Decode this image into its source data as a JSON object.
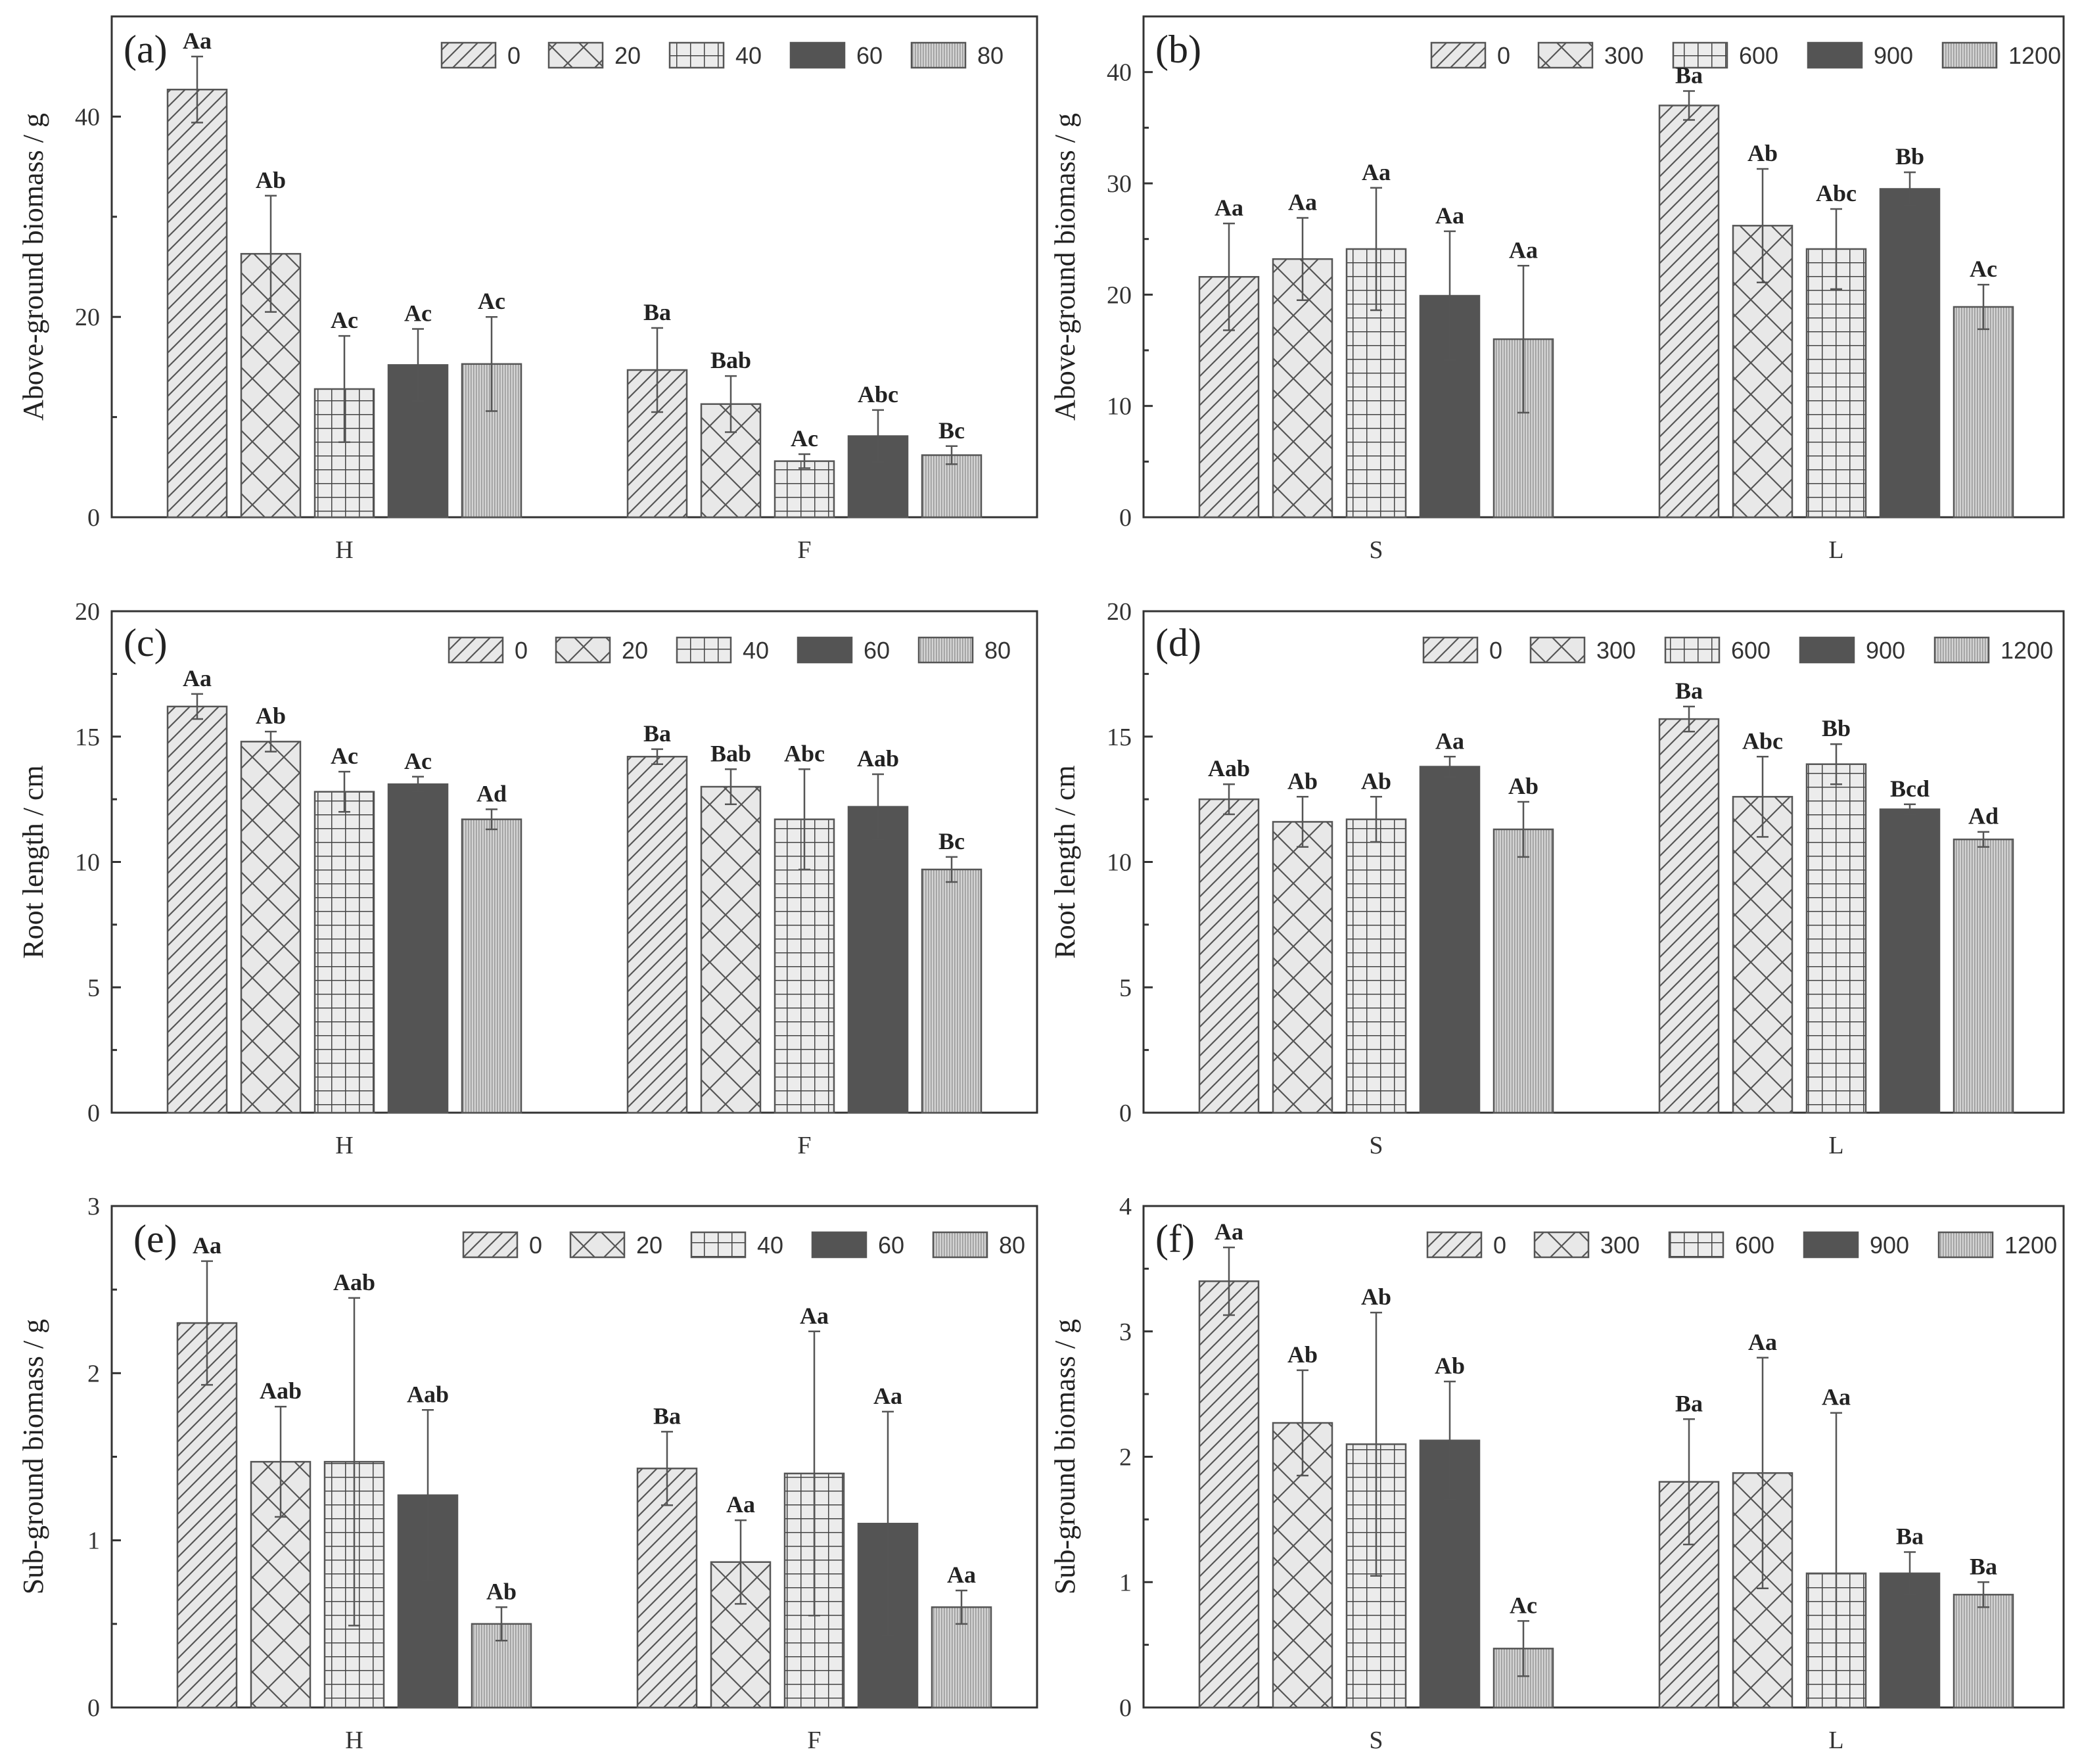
{
  "series_styles": [
    {
      "pattern": "diag",
      "fill": "#e6e6e6"
    },
    {
      "pattern": "cross",
      "fill": "#e6e6e6"
    },
    {
      "pattern": "grid",
      "fill": "#e6e6e6"
    },
    {
      "pattern": "solid",
      "fill": "#545454"
    },
    {
      "pattern": "dots",
      "fill": "#d0d0d0"
    }
  ],
  "chart_data": [
    {
      "panel": "(a)",
      "type": "bar",
      "ylabel": "Above-ground biomass / g",
      "ylim": [
        0,
        50
      ],
      "yticks": [
        "0",
        "20",
        "40"
      ],
      "ytick_values": [
        0,
        20,
        40
      ],
      "legend": [
        "0",
        "20",
        "40",
        "60",
        "80"
      ],
      "categories": [
        "H",
        "F"
      ],
      "values": [
        [
          42.7,
          26.3,
          12.8,
          15.2,
          15.3
        ],
        [
          14.7,
          11.3,
          5.6,
          8.1,
          6.2
        ]
      ],
      "errors": [
        [
          3.3,
          5.8,
          5.3,
          3.6,
          4.7
        ],
        [
          4.2,
          2.8,
          0.7,
          2.6,
          0.9
        ]
      ],
      "labels": [
        [
          "Aa",
          "Ab",
          "Ac",
          "Ac",
          "Ac"
        ],
        [
          "Ba",
          "Bab",
          "Ac",
          "Abc",
          "Bc"
        ]
      ]
    },
    {
      "panel": "(b)",
      "type": "bar",
      "ylabel": "Above-ground biomass / g",
      "ylim": [
        0,
        45
      ],
      "yticks": [
        "0",
        "10",
        "20",
        "30",
        "40"
      ],
      "ytick_values": [
        0,
        10,
        20,
        30,
        40
      ],
      "legend": [
        "0",
        "300",
        "600",
        "900",
        "1200"
      ],
      "categories": [
        "S",
        "L"
      ],
      "values": [
        [
          21.6,
          23.2,
          24.1,
          19.9,
          16.0
        ],
        [
          37.0,
          26.2,
          24.1,
          29.5,
          18.9
        ]
      ],
      "errors": [
        [
          4.8,
          3.7,
          5.5,
          5.8,
          6.6
        ],
        [
          1.3,
          5.1,
          3.6,
          1.5,
          2.0
        ]
      ],
      "labels": [
        [
          "Aa",
          "Aa",
          "Aa",
          "Aa",
          "Aa"
        ],
        [
          "Ba",
          "Ab",
          "Abc",
          "Bb",
          "Ac"
        ]
      ]
    },
    {
      "panel": "(c)",
      "type": "bar",
      "ylabel": "Root length / cm",
      "ylim": [
        0,
        20
      ],
      "yticks": [
        "0",
        "5",
        "10",
        "15",
        "20"
      ],
      "ytick_values": [
        0,
        5,
        10,
        15,
        20
      ],
      "legend": [
        "0",
        "20",
        "40",
        "60",
        "80"
      ],
      "categories": [
        "H",
        "F"
      ],
      "values": [
        [
          16.2,
          14.8,
          12.8,
          13.1,
          11.7
        ],
        [
          14.2,
          13.0,
          11.7,
          12.2,
          9.7
        ]
      ],
      "errors": [
        [
          0.5,
          0.4,
          0.8,
          0.3,
          0.4
        ],
        [
          0.3,
          0.7,
          2.0,
          1.3,
          0.5
        ]
      ],
      "labels": [
        [
          "Aa",
          "Ab",
          "Ac",
          "Ac",
          "Ad"
        ],
        [
          "Ba",
          "Bab",
          "Abc",
          "Aab",
          "Bc"
        ]
      ]
    },
    {
      "panel": "(d)",
      "type": "bar",
      "ylabel": "Root length / cm",
      "ylim": [
        0,
        20
      ],
      "yticks": [
        "0",
        "5",
        "10",
        "15",
        "20"
      ],
      "ytick_values": [
        0,
        5,
        10,
        15,
        20
      ],
      "legend": [
        "0",
        "300",
        "600",
        "900",
        "1200"
      ],
      "categories": [
        "S",
        "L"
      ],
      "values": [
        [
          12.5,
          11.6,
          11.7,
          13.8,
          11.3
        ],
        [
          15.7,
          12.6,
          13.9,
          12.1,
          10.9
        ]
      ],
      "errors": [
        [
          0.6,
          1.0,
          0.9,
          0.4,
          1.1
        ],
        [
          0.5,
          1.6,
          0.8,
          0.2,
          0.3
        ]
      ],
      "labels": [
        [
          "Aab",
          "Ab",
          "Ab",
          "Aa",
          "Ab"
        ],
        [
          "Ba",
          "Abc",
          "Bb",
          "Bcd",
          "Ad"
        ]
      ]
    },
    {
      "panel": "(e)",
      "type": "bar",
      "ylabel": "Sub-ground biomass / g",
      "ylim": [
        0,
        3
      ],
      "yticks": [
        "0",
        "1",
        "2",
        "3"
      ],
      "ytick_values": [
        0,
        1,
        2,
        3
      ],
      "legend": [
        "0",
        "20",
        "40",
        "60",
        "80"
      ],
      "categories": [
        "H",
        "F"
      ],
      "values": [
        [
          2.3,
          1.47,
          1.47,
          1.27,
          0.5
        ],
        [
          1.43,
          0.87,
          1.4,
          1.1,
          0.6
        ]
      ],
      "errors": [
        [
          0.37,
          0.33,
          0.98,
          0.51,
          0.1
        ],
        [
          0.22,
          0.25,
          0.85,
          0.67,
          0.1
        ]
      ],
      "labels": [
        [
          "Aa",
          "Aab",
          "Aab",
          "Aab",
          "Ab"
        ],
        [
          "Ba",
          "Aa",
          "Aa",
          "Aa",
          "Aa"
        ]
      ]
    },
    {
      "panel": "(f)",
      "type": "bar",
      "ylabel": "Sub-ground biomass / g",
      "ylim": [
        0,
        4
      ],
      "yticks": [
        "0",
        "1",
        "2",
        "3",
        "4"
      ],
      "ytick_values": [
        0,
        1,
        2,
        3,
        4
      ],
      "legend": [
        "0",
        "300",
        "600",
        "900",
        "1200"
      ],
      "categories": [
        "S",
        "L"
      ],
      "values": [
        [
          3.4,
          2.27,
          2.1,
          2.13,
          0.47
        ],
        [
          1.8,
          1.87,
          1.07,
          1.07,
          0.9
        ]
      ],
      "errors": [
        [
          0.27,
          0.42,
          1.05,
          0.47,
          0.22
        ],
        [
          0.5,
          0.92,
          1.28,
          0.17,
          0.1
        ]
      ],
      "labels": [
        [
          "Aa",
          "Ab",
          "Ab",
          "Ab",
          "Ac"
        ],
        [
          "Ba",
          "Aa",
          "Aa",
          "Ba",
          "Ba"
        ]
      ]
    }
  ]
}
